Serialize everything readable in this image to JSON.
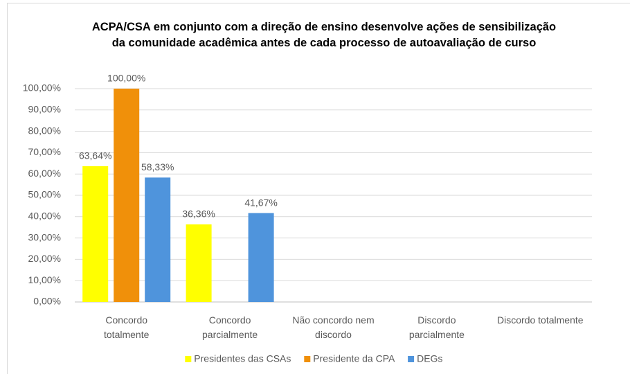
{
  "chart_data": {
    "type": "bar",
    "title": "ACPA/CSA em conjunto com a direção de ensino desenvolve ações de sensibilização\nda comunidade acadêmica antes de cada processo de autoavaliação de curso",
    "categories": [
      "Concordo\ntotalmente",
      "Concordo\nparcialmente",
      "Não concordo nem\ndiscordo",
      "Discordo\nparcialmente",
      "Discordo totalmente"
    ],
    "series": [
      {
        "name": "Presidentes das CSAs",
        "color": "#ffff00",
        "values": [
          63.64,
          36.36,
          null,
          null,
          null
        ],
        "value_labels": [
          "63,64%",
          "36,36%",
          null,
          null,
          null
        ]
      },
      {
        "name": "Presidente da CPA",
        "color": "#f0900a",
        "values": [
          100,
          null,
          null,
          null,
          null
        ],
        "value_labels": [
          "100,00%",
          null,
          null,
          null,
          null
        ]
      },
      {
        "name": "DEGs",
        "color": "#4f94dc",
        "values": [
          58.33,
          41.67,
          null,
          null,
          null
        ],
        "value_labels": [
          "58,33%",
          "41,67%",
          null,
          null,
          null
        ]
      }
    ],
    "ylim": [
      0,
      100
    ],
    "yticks": [
      {
        "value": 0,
        "label": "0,00%"
      },
      {
        "value": 10,
        "label": "10,00%"
      },
      {
        "value": 20,
        "label": "20,00%"
      },
      {
        "value": 30,
        "label": "30,00%"
      },
      {
        "value": 40,
        "label": "40,00%"
      },
      {
        "value": 50,
        "label": "50,00%"
      },
      {
        "value": 60,
        "label": "60,00%"
      },
      {
        "value": 70,
        "label": "70,00%"
      },
      {
        "value": 80,
        "label": "80,00%"
      },
      {
        "value": 90,
        "label": "90,00%"
      },
      {
        "value": 100,
        "label": "100,00%"
      }
    ],
    "grid": true
  }
}
